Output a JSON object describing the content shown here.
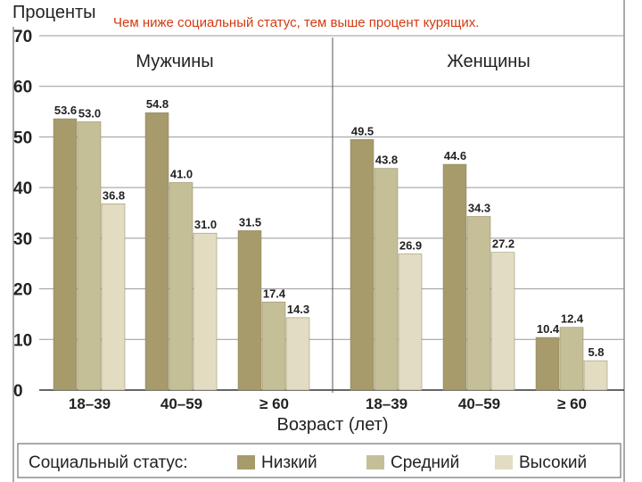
{
  "chart_data": {
    "type": "bar",
    "title": "Чем ниже социальный статус, тем выше процент курящих.",
    "ylabel": "Проценты",
    "xlabel": "Возраст (лет)",
    "ylim": [
      0,
      70
    ],
    "yticks": [
      0,
      10,
      20,
      30,
      40,
      50,
      60,
      70
    ],
    "grid": true,
    "legend_title": "Социальный статус:",
    "legend_position": "bottom",
    "colors": [
      "#a79a6b",
      "#c5bf98",
      "#e2dcc3"
    ],
    "series_names": [
      "Низкий",
      "Средний",
      "Высокий"
    ],
    "panels": [
      {
        "name": "Мужчины",
        "categories": [
          "18–39",
          "40–59",
          "≥ 60"
        ],
        "series": [
          {
            "name": "Низкий",
            "values": [
              53.6,
              54.8,
              31.5
            ]
          },
          {
            "name": "Средний",
            "values": [
              53.0,
              41.0,
              17.4
            ]
          },
          {
            "name": "Высокий",
            "values": [
              36.8,
              31.0,
              14.3
            ]
          }
        ]
      },
      {
        "name": "Женщины",
        "categories": [
          "18–39",
          "40–59",
          "≥ 60"
        ],
        "series": [
          {
            "name": "Низкий",
            "values": [
              49.5,
              44.6,
              10.4
            ]
          },
          {
            "name": "Средний",
            "values": [
              43.8,
              34.3,
              12.4
            ]
          },
          {
            "name": "Высокий",
            "values": [
              26.9,
              27.2,
              5.8
            ]
          }
        ]
      }
    ]
  }
}
